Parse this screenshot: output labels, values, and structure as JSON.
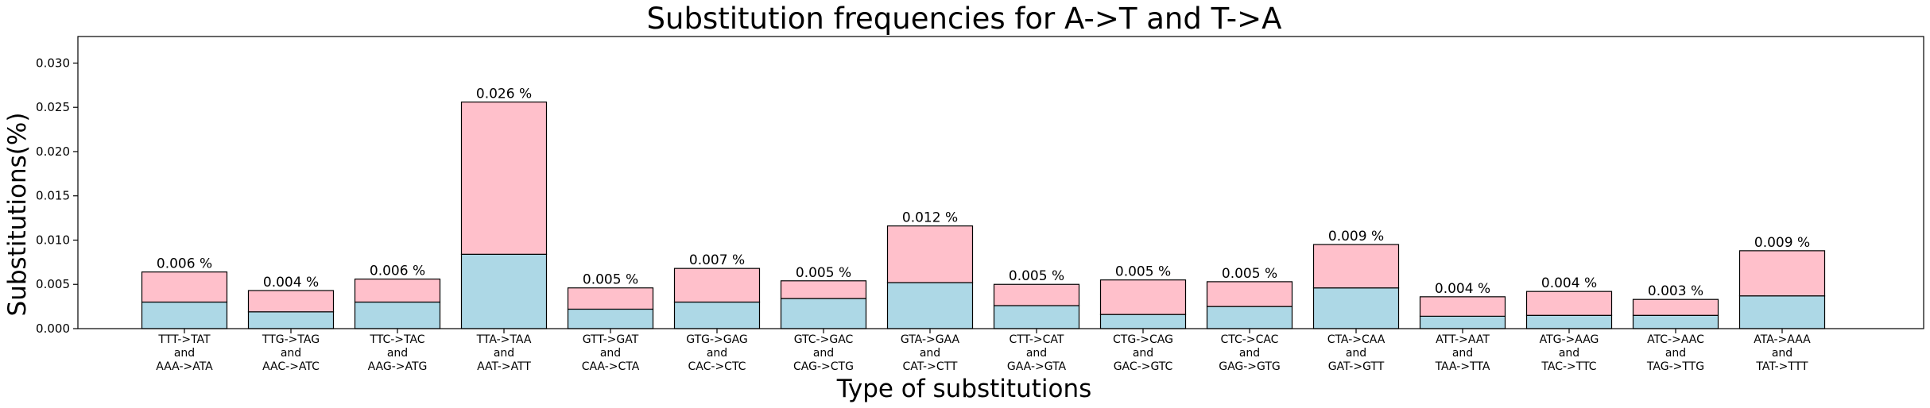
{
  "chart_data": {
    "type": "bar",
    "stacked": true,
    "title": "Substitution frequencies for A->T and T->A",
    "xlabel": "Type of substitutions",
    "ylabel": "Substitutions(%)",
    "ylim": [
      0,
      0.033
    ],
    "yticks": [
      "0.000",
      "0.005",
      "0.010",
      "0.015",
      "0.020",
      "0.025",
      "0.030"
    ],
    "grid": false,
    "categories": [
      [
        "TTT->TAT",
        "and",
        "AAA->ATA"
      ],
      [
        "TTG->TAG",
        "and",
        "AAC->ATC"
      ],
      [
        "TTC->TAC",
        "and",
        "AAG->ATG"
      ],
      [
        "TTA->TAA",
        "and",
        "AAT->ATT"
      ],
      [
        "GTT->GAT",
        "and",
        "CAA->CTA"
      ],
      [
        "GTG->GAG",
        "and",
        "CAC->CTC"
      ],
      [
        "GTC->GAC",
        "and",
        "CAG->CTG"
      ],
      [
        "GTA->GAA",
        "and",
        "CAT->CTT"
      ],
      [
        "CTT->CAT",
        "and",
        "GAA->GTA"
      ],
      [
        "CTG->CAG",
        "and",
        "GAC->GTC"
      ],
      [
        "CTC->CAC",
        "and",
        "GAG->GTG"
      ],
      [
        "CTA->CAA",
        "and",
        "GAT->GTT"
      ],
      [
        "ATT->AAT",
        "and",
        "TAA->TTA"
      ],
      [
        "ATG->AAG",
        "and",
        "TAC->TTC"
      ],
      [
        "ATC->AAC",
        "and",
        "TAG->TTG"
      ],
      [
        "ATA->AAA",
        "and",
        "TAT->TTT"
      ]
    ],
    "series": [
      {
        "name": "lower",
        "color": "#add8e6",
        "values": [
          0.003,
          0.0019,
          0.003,
          0.0084,
          0.0022,
          0.003,
          0.0034,
          0.0052,
          0.0026,
          0.0016,
          0.0025,
          0.0046,
          0.0014,
          0.0015,
          0.0015,
          0.0037
        ]
      },
      {
        "name": "upper",
        "color": "#ffc0cb",
        "values": [
          0.0034,
          0.0024,
          0.0026,
          0.0172,
          0.0024,
          0.0038,
          0.002,
          0.0064,
          0.0024,
          0.0039,
          0.0028,
          0.0049,
          0.0022,
          0.0027,
          0.0018,
          0.0051
        ]
      }
    ],
    "data_labels": [
      "0.006 %",
      "0.004 %",
      "0.006 %",
      "0.026 %",
      "0.005 %",
      "0.007 %",
      "0.005 %",
      "0.012 %",
      "0.005 %",
      "0.005 %",
      "0.005 %",
      "0.009 %",
      "0.004 %",
      "0.004 %",
      "0.003 %",
      "0.009 %"
    ]
  }
}
